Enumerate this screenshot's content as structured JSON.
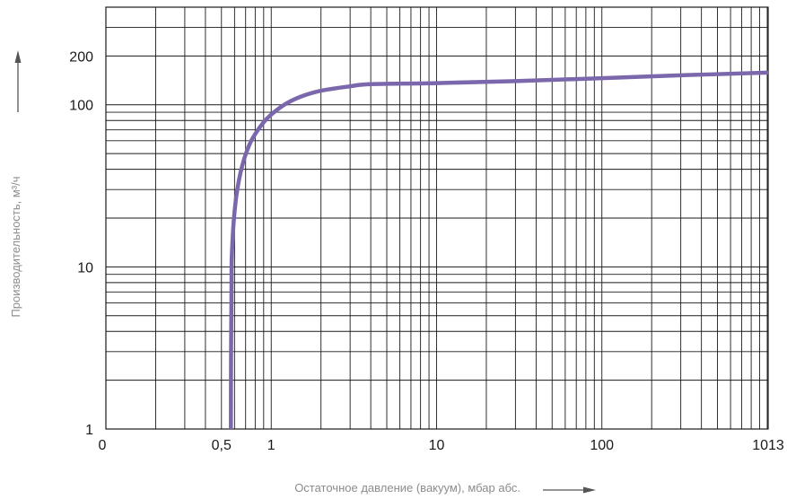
{
  "chart_data": {
    "type": "line",
    "title": "",
    "xlabel": "Остаточное давление (вакуум), мбар абс.",
    "ylabel": "Производительность, м³/ч",
    "x_scale": "log",
    "y_scale": "log",
    "xlim": [
      0.1,
      1013
    ],
    "ylim": [
      1,
      400
    ],
    "grid": true,
    "x_ticks": [
      {
        "value": 0.1,
        "label": "0"
      },
      {
        "value": 0.5,
        "label": "0,5"
      },
      {
        "value": 1,
        "label": "1"
      },
      {
        "value": 10,
        "label": "10"
      },
      {
        "value": 100,
        "label": "100"
      },
      {
        "value": 1013,
        "label": "1013"
      }
    ],
    "y_ticks": [
      {
        "value": 1,
        "label": "1"
      },
      {
        "value": 10,
        "label": "10"
      },
      {
        "value": 100,
        "label": "100"
      },
      {
        "value": 200,
        "label": "200"
      }
    ],
    "series": [
      {
        "color": "#7b67ac",
        "points": [
          [
            0.57,
            1
          ],
          [
            0.572,
            3
          ],
          [
            0.575,
            8
          ],
          [
            0.578,
            12
          ],
          [
            0.6,
            22
          ],
          [
            0.63,
            32
          ],
          [
            0.68,
            45
          ],
          [
            0.74,
            57
          ],
          [
            0.8,
            66
          ],
          [
            0.9,
            78
          ],
          [
            1.0,
            87
          ],
          [
            1.2,
            100
          ],
          [
            1.5,
            112
          ],
          [
            2.0,
            122
          ],
          [
            3.0,
            130
          ],
          [
            4.0,
            134
          ],
          [
            10,
            136
          ],
          [
            30,
            140
          ],
          [
            100,
            146
          ],
          [
            300,
            152
          ],
          [
            1013,
            158
          ]
        ]
      }
    ],
    "colors": {
      "grid": "#1a1a1a",
      "curve": "#7b67ac",
      "arrow": "#555555"
    }
  }
}
